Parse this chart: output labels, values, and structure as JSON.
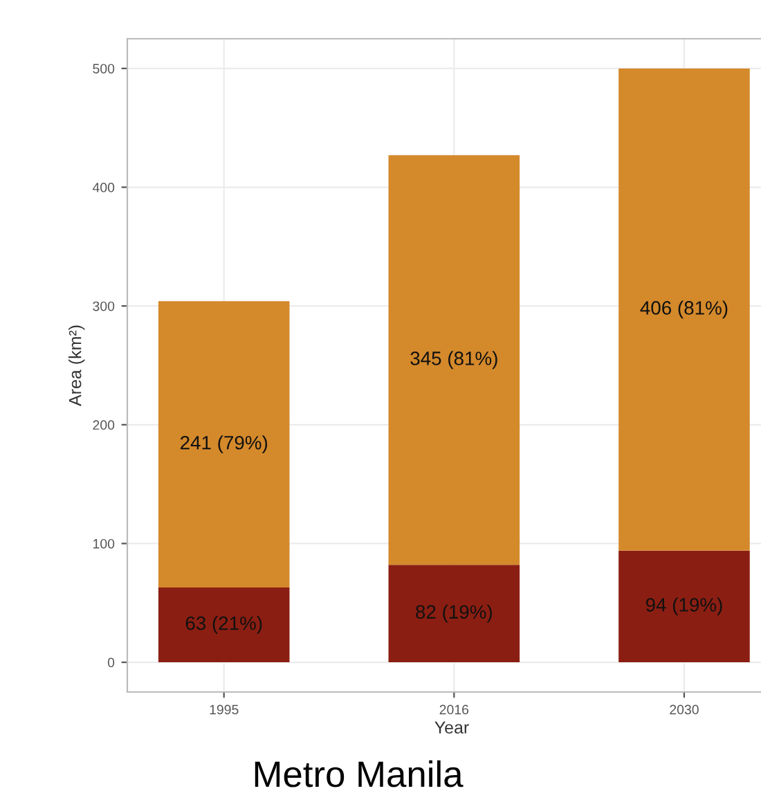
{
  "chart_data": {
    "type": "bar",
    "title": "Metro Manila",
    "xlabel": "Year",
    "ylabel": "Area (km²)",
    "categories": [
      "1995",
      "2016",
      "2030"
    ],
    "stacked": true,
    "series": [
      {
        "color": "#8b1e12",
        "values": [
          63,
          82,
          94
        ],
        "value_labels": [
          "63 (21%)",
          "82 (19%)",
          "94 (19%)"
        ]
      },
      {
        "color": "#d4892b",
        "values": [
          241,
          345,
          406
        ],
        "value_labels": [
          "241 (79%)",
          "345 (81%)",
          "406 (81%)"
        ]
      }
    ],
    "ylim": [
      -25,
      525
    ],
    "yticks": [
      0,
      100,
      200,
      300,
      400,
      500
    ],
    "grid": true,
    "legend": false
  }
}
